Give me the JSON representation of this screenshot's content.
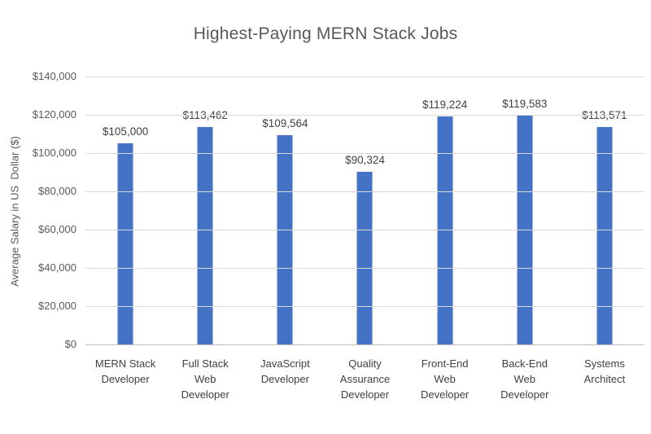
{
  "chart_data": {
    "type": "bar",
    "title": "Highest-Paying MERN Stack Jobs",
    "xlabel": "",
    "ylabel": "Average Salary in US  Dollar ($)",
    "categories": [
      "MERN Stack\nDeveloper",
      "Full Stack\nWeb\nDeveloper",
      "JavaScript\nDeveloper",
      "Quality\nAssurance\nDeveloper",
      "Front-End\nWeb\nDeveloper",
      "Back-End\nWeb\nDeveloper",
      "Systems\nArchitect"
    ],
    "values": [
      105000,
      113462,
      109564,
      90324,
      119224,
      119583,
      113571
    ],
    "value_labels": [
      "$105,000",
      "$113,462",
      "$109,564",
      "$90,324",
      "$119,224",
      "$119,583",
      "$113,571"
    ],
    "ylim": [
      0,
      140000
    ],
    "yticks": [
      {
        "value": 0,
        "label": "$0"
      },
      {
        "value": 20000,
        "label": "$20,000"
      },
      {
        "value": 40000,
        "label": "$40,000"
      },
      {
        "value": 60000,
        "label": "$60,000"
      },
      {
        "value": 80000,
        "label": "$80,000"
      },
      {
        "value": 100000,
        "label": "$100,000"
      },
      {
        "value": 120000,
        "label": "$120,000"
      },
      {
        "value": 140000,
        "label": "$140,000"
      }
    ],
    "grid": true,
    "legend": "none",
    "colors": {
      "bar": "#4472c4",
      "gridline": "#d9d9d9",
      "axis_line": "#bfbfbf",
      "title_text": "#595959",
      "tick_text": "#595959",
      "label_text": "#404040",
      "background": "#ffffff"
    }
  }
}
